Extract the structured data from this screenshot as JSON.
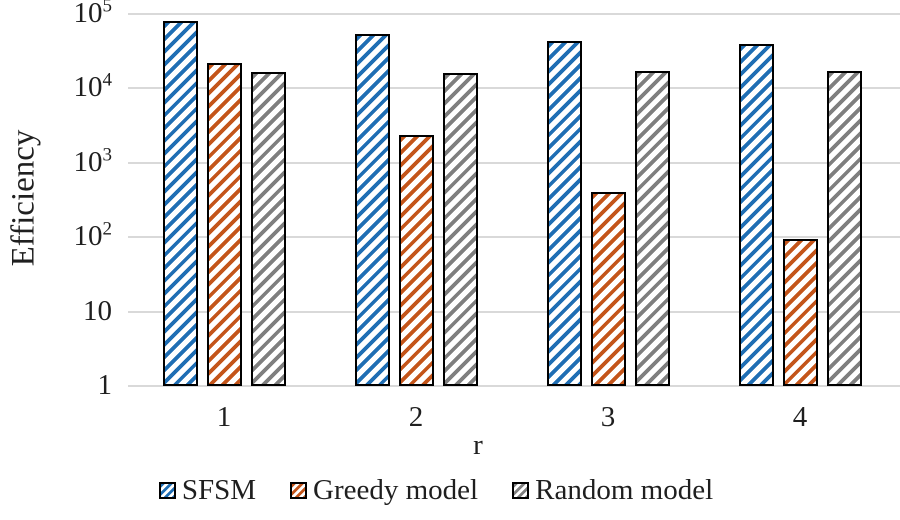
{
  "chart_data": {
    "type": "bar",
    "yscale": "log",
    "title": "",
    "xlabel": "r",
    "ylabel": "Efficiency",
    "ylim": [
      1,
      100000
    ],
    "yticks": [
      {
        "value": 100000,
        "base": "10",
        "exp": "5"
      },
      {
        "value": 10000,
        "base": "10",
        "exp": "4"
      },
      {
        "value": 1000,
        "base": "10",
        "exp": "3"
      },
      {
        "value": 100,
        "base": "10",
        "exp": "2"
      },
      {
        "value": 10,
        "base": "10",
        "exp": ""
      },
      {
        "value": 1,
        "base": "1",
        "exp": ""
      }
    ],
    "categories": [
      "1",
      "2",
      "3",
      "4"
    ],
    "series": [
      {
        "name": "SFSM",
        "color": "#1f6eb4",
        "values": [
          80000,
          54000,
          43000,
          40000
        ]
      },
      {
        "name": "Greedy model",
        "color": "#c4551a",
        "values": [
          22000,
          2400,
          400,
          95
        ]
      },
      {
        "name": "Random model",
        "color": "#7f7f7f",
        "values": [
          16500,
          16000,
          17000,
          17000
        ]
      }
    ],
    "grid": true,
    "legend_position": "bottom",
    "hatch": "diagonal-forward",
    "colors": {
      "gridline": "#d9d9d9",
      "bar_border": "#000000",
      "text": "#1f1f1f",
      "background": "#ffffff"
    }
  }
}
